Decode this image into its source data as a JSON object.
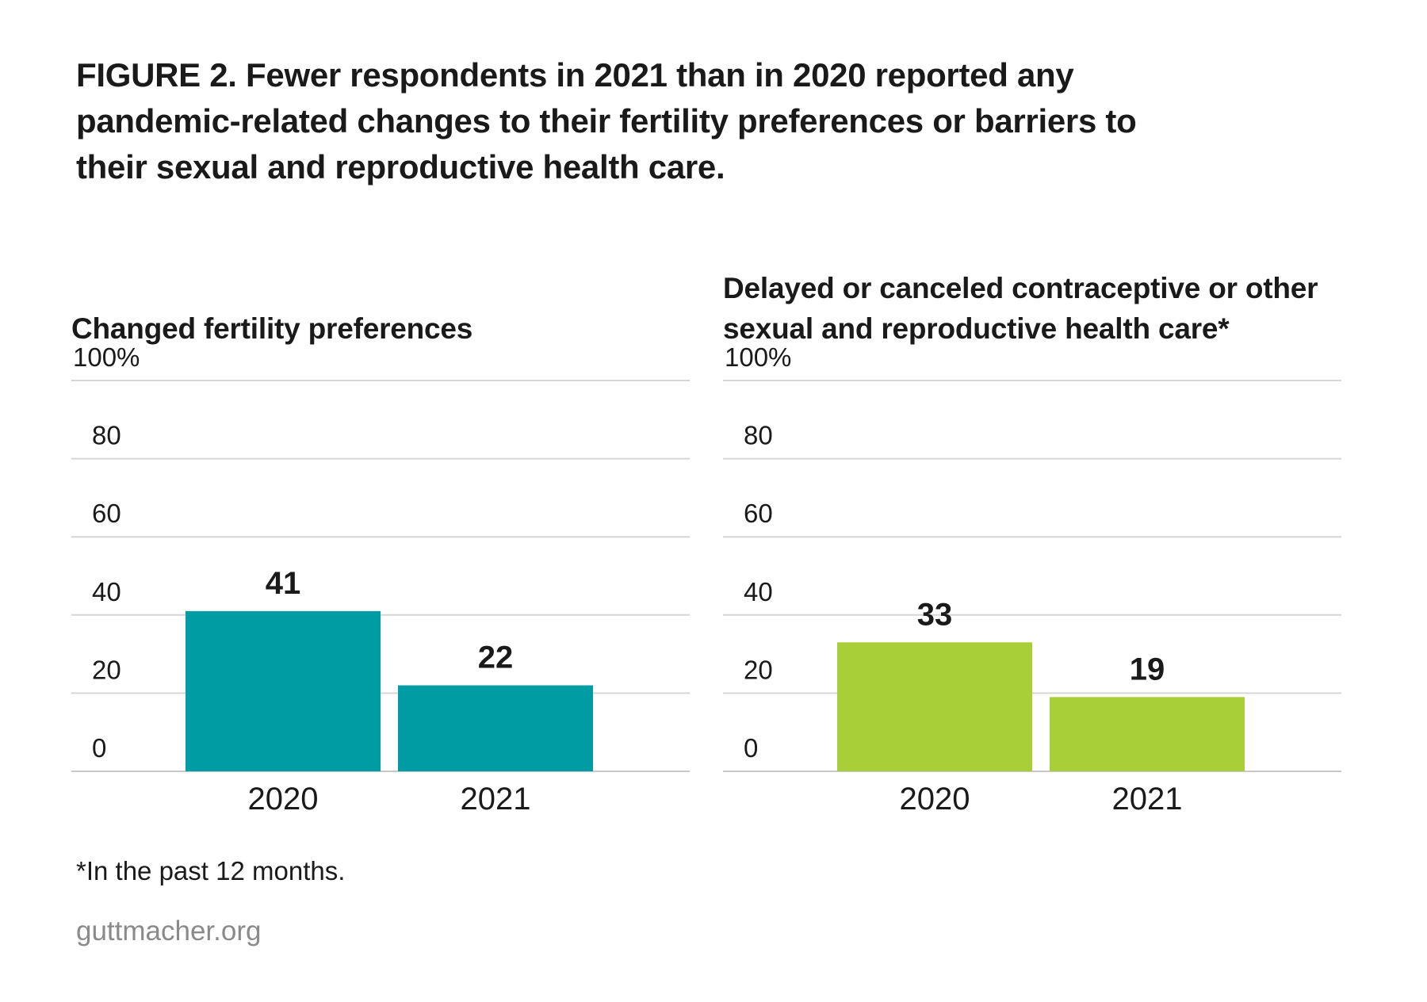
{
  "figure_title": "FIGURE 2. Fewer respondents in 2021 than in 2020 reported any pandemic-related changes to their fertility preferences or barriers to their sexual and reproductive health care.",
  "footnote": "*In the past 12 months.",
  "source": "guttmacher.org",
  "chart_data": [
    {
      "type": "bar",
      "title": "Changed fertility preferences",
      "categories": [
        "2020",
        "2021"
      ],
      "values": [
        41,
        22
      ],
      "data_labels": [
        "41",
        "22"
      ],
      "ylim": [
        0,
        100
      ],
      "y_ticks": [
        0,
        20,
        40,
        60,
        80,
        100
      ],
      "y_tick_labels": [
        "0",
        "20",
        "40",
        "60",
        "80",
        "100%"
      ],
      "grid": true,
      "color": "#009ca3"
    },
    {
      "type": "bar",
      "title": "Delayed or canceled contraceptive or other sexual and reproductive health care*",
      "categories": [
        "2020",
        "2021"
      ],
      "values": [
        33,
        19
      ],
      "data_labels": [
        "33",
        "19"
      ],
      "ylim": [
        0,
        100
      ],
      "y_ticks": [
        0,
        20,
        40,
        60,
        80,
        100
      ],
      "y_tick_labels": [
        "0",
        "20",
        "40",
        "60",
        "80",
        "100%"
      ],
      "grid": true,
      "color": "#a8cf38"
    }
  ]
}
